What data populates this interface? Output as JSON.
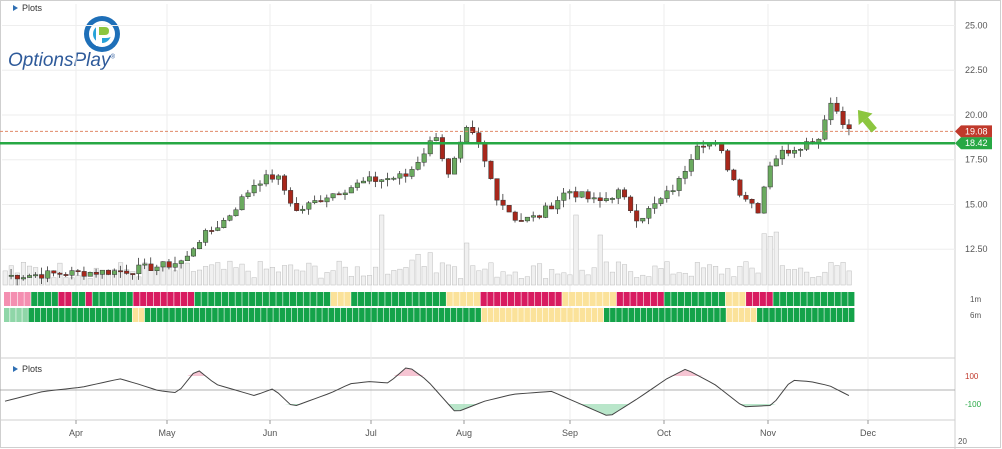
{
  "app": {
    "top_panel_label": "Plots",
    "bottom_panel_label": "Plots",
    "logo_text": "OptionsPlay",
    "logo_mark": "®",
    "current_price_tag": "19.08",
    "support_tag": "18.42",
    "cut_year_label": "20"
  },
  "colors": {
    "up": "#6aaa5f",
    "down": "#a8271b",
    "support": "#27a844",
    "price_tag": "#c0392b",
    "arrow": "#8cc63f",
    "heat_red": "#d81b60",
    "heat_pink": "#f48fb1",
    "heat_green": "#14a34a",
    "heat_lightgreen": "#8fd6a8",
    "heat_yellow": "#fbe29a"
  },
  "icons": [
    "panel-collapse-triangle-icon",
    "optionsplay-logo-icon",
    "up-arrow-icon"
  ],
  "chart_data": [
    {
      "type": "candlestick",
      "title": "",
      "x_axis_labels": [
        "Apr",
        "May",
        "Jun",
        "Jul",
        "Aug",
        "Sep",
        "Oct",
        "Nov",
        "Dec"
      ],
      "y_ticks": [
        12.5,
        15.0,
        17.5,
        20.0,
        22.5,
        25.0
      ],
      "ylim": [
        10.5,
        26.2
      ],
      "grid": true,
      "horizontal_lines": [
        {
          "label": "18.42",
          "value": 18.42,
          "style": "solid-green"
        },
        {
          "label": "19.08",
          "value": 19.08,
          "style": "dashed-red"
        }
      ],
      "ohlc_keypoints": [
        [
          0,
          11.0
        ],
        [
          60,
          11.3
        ],
        [
          80,
          11.6
        ],
        [
          90,
          11.9
        ],
        [
          95,
          12.9
        ],
        [
          110,
          14.2
        ],
        [
          125,
          16.3
        ],
        [
          135,
          16.6
        ],
        [
          145,
          14.6
        ],
        [
          160,
          15.5
        ],
        [
          180,
          16.3
        ],
        [
          200,
          16.6
        ],
        [
          215,
          19.0
        ],
        [
          220,
          16.4
        ],
        [
          230,
          19.2
        ],
        [
          235,
          18.5
        ],
        [
          245,
          15.4
        ],
        [
          255,
          14.1
        ],
        [
          265,
          14.3
        ],
        [
          280,
          15.8
        ],
        [
          295,
          15.1
        ],
        [
          305,
          15.7
        ],
        [
          315,
          14.2
        ],
        [
          325,
          15.1
        ],
        [
          335,
          16.2
        ],
        [
          345,
          18.6
        ],
        [
          355,
          18.2
        ],
        [
          365,
          15.8
        ],
        [
          375,
          14.7
        ],
        [
          380,
          17.2
        ],
        [
          385,
          17.8
        ],
        [
          395,
          18.3
        ],
        [
          405,
          18.7
        ],
        [
          410,
          20.8
        ],
        [
          415,
          20.1
        ],
        [
          420,
          19.1
        ]
      ],
      "candle_count": 140
    },
    {
      "type": "bar",
      "title": "volume",
      "values_relative": "histogram heights shown as relative bars (no axis)",
      "bar_count": 140
    },
    {
      "type": "heatmap",
      "rows": [
        "1m",
        "6m"
      ],
      "segments_1m": [
        {
          "color": "pink",
          "units": 4
        },
        {
          "color": "green",
          "units": 4
        },
        {
          "color": "red",
          "units": 2
        },
        {
          "color": "green",
          "units": 2
        },
        {
          "color": "red",
          "units": 1
        },
        {
          "color": "green",
          "units": 6
        },
        {
          "color": "red",
          "units": 9
        },
        {
          "color": "green",
          "units": 20
        },
        {
          "color": "yellow",
          "units": 3
        },
        {
          "color": "green",
          "units": 14
        },
        {
          "color": "yellow",
          "units": 5
        },
        {
          "color": "red",
          "units": 12
        },
        {
          "color": "yellow",
          "units": 8
        },
        {
          "color": "red",
          "units": 7
        },
        {
          "color": "green",
          "units": 9
        },
        {
          "color": "yellow",
          "units": 3
        },
        {
          "color": "red",
          "units": 4
        },
        {
          "color": "green",
          "units": 12
        }
      ],
      "segments_6m": [
        {
          "color": "lightgreen",
          "units": 4
        },
        {
          "color": "green",
          "units": 17
        },
        {
          "color": "yellow",
          "units": 2
        },
        {
          "color": "green",
          "units": 55
        },
        {
          "color": "yellow",
          "units": 20
        },
        {
          "color": "green",
          "units": 20
        },
        {
          "color": "yellow",
          "units": 5
        },
        {
          "color": "green",
          "units": 16
        }
      ]
    },
    {
      "type": "line",
      "title": "oscillator",
      "y_ticks": [
        100,
        -100
      ],
      "ylim": [
        -200,
        200
      ],
      "bands": [
        100,
        -100
      ],
      "keypoints": [
        [
          0,
          -80
        ],
        [
          20,
          -10
        ],
        [
          40,
          20
        ],
        [
          60,
          80
        ],
        [
          70,
          40
        ],
        [
          80,
          -5
        ],
        [
          90,
          -20
        ],
        [
          100,
          150
        ],
        [
          110,
          40
        ],
        [
          130,
          -40
        ],
        [
          140,
          10
        ],
        [
          150,
          -120
        ],
        [
          170,
          -20
        ],
        [
          180,
          45
        ],
        [
          190,
          60
        ],
        [
          200,
          50
        ],
        [
          210,
          170
        ],
        [
          220,
          70
        ],
        [
          235,
          -160
        ],
        [
          250,
          -80
        ],
        [
          265,
          -30
        ],
        [
          285,
          -10
        ],
        [
          300,
          -100
        ],
        [
          315,
          -190
        ],
        [
          330,
          -60
        ],
        [
          345,
          80
        ],
        [
          355,
          150
        ],
        [
          370,
          40
        ],
        [
          385,
          -120
        ],
        [
          400,
          -110
        ],
        [
          410,
          70
        ],
        [
          420,
          60
        ],
        [
          430,
          30
        ],
        [
          440,
          -40
        ]
      ]
    }
  ]
}
